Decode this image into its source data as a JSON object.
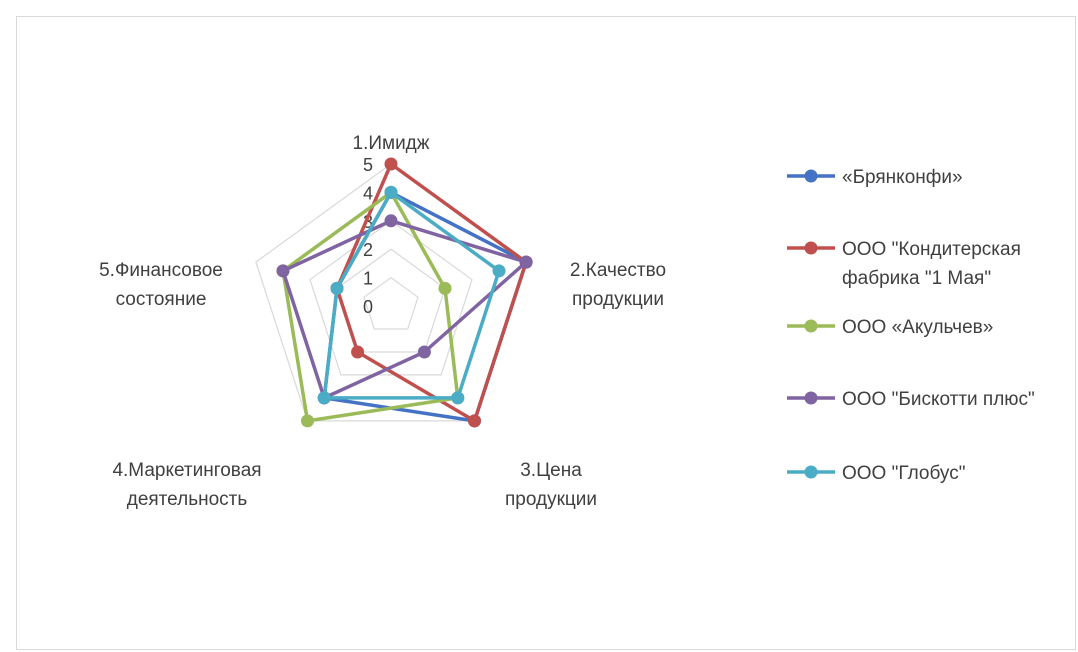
{
  "chart_data": {
    "type": "radar",
    "categories": [
      [
        "1.Имидж"
      ],
      [
        "2.Качество",
        "продукции"
      ],
      [
        "3.Цена",
        "продукции"
      ],
      [
        "4.Маркетинговая",
        "деятельность"
      ],
      [
        "5.Финансовое",
        "состояние"
      ]
    ],
    "rticks": [
      "0",
      "1",
      "2",
      "3",
      "4",
      "5"
    ],
    "rlim": [
      0,
      5
    ],
    "grid": true,
    "legend_position": "right",
    "series": [
      {
        "name": "«Брянконфи»",
        "values": [
          4,
          5,
          5,
          4,
          2
        ],
        "color": "#4472C4"
      },
      {
        "name": [
          "ООО \"Кондитерская",
          "фабрика \"1 Мая\""
        ],
        "values": [
          5,
          5,
          5,
          2,
          2
        ],
        "color": "#C0504D"
      },
      {
        "name": "ООО «Акульчев»",
        "values": [
          4,
          2,
          4,
          5,
          4
        ],
        "color": "#9BBB59"
      },
      {
        "name": "ООО \"Бискотти плюс\"",
        "values": [
          3,
          5,
          2,
          4,
          4
        ],
        "color": "#8064A2"
      },
      {
        "name": "ООО \"Глобус\"",
        "values": [
          4,
          4,
          4,
          4,
          2
        ],
        "color": "#4BACC6"
      }
    ]
  }
}
